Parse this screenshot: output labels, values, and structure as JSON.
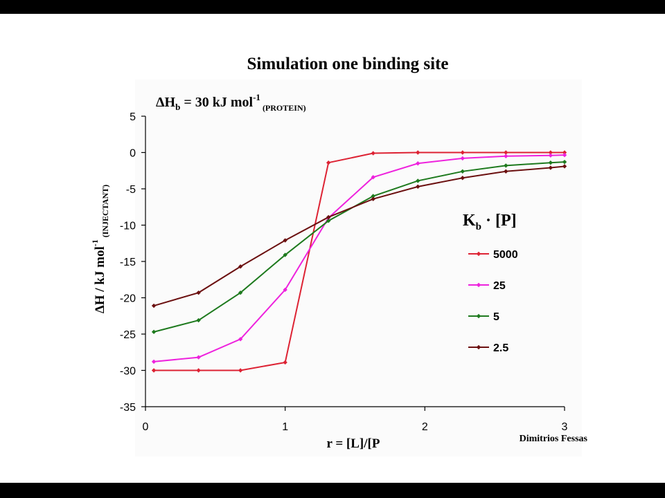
{
  "slide": {
    "title": "Simulation one binding site",
    "credit": "Dimitrios Fessas"
  },
  "chart_data": {
    "type": "line",
    "annotation": {
      "main": "ΔH",
      "sub": "b",
      "rest": " = 30 kJ mol",
      "sup": "-1",
      "tail": " (PROTEIN)"
    },
    "xlabel": "r = [L]/[P",
    "ylabel": {
      "main": "ΔH / kJ mol",
      "sup": "-1",
      "sub": " (INJECTANT)"
    },
    "legend": {
      "title_main": "K",
      "title_sub": "b",
      "title_rest": " · [P]",
      "placement": "right"
    },
    "xlim": [
      0,
      3
    ],
    "ylim": [
      -35,
      5
    ],
    "x_ticks": [
      0,
      1,
      2,
      3
    ],
    "y_ticks": [
      5,
      0,
      -5,
      -10,
      -15,
      -20,
      -25,
      -30,
      -35
    ],
    "grid": false,
    "series": [
      {
        "name": "5000",
        "color": "#dd2233",
        "x": [
          0.06,
          0.38,
          0.68,
          1.0,
          1.31,
          1.63,
          1.95,
          2.27,
          2.58,
          2.9,
          3.0
        ],
        "y": [
          -30,
          -30,
          -30,
          -28.9,
          -1.4,
          -0.1,
          0,
          0,
          0,
          0,
          0
        ]
      },
      {
        "name": "25",
        "color": "#ee22dd",
        "x": [
          0.06,
          0.38,
          0.68,
          1.0,
          1.31,
          1.63,
          1.95,
          2.27,
          2.58,
          2.9,
          3.0
        ],
        "y": [
          -28.8,
          -28.2,
          -25.7,
          -18.9,
          -9.0,
          -3.4,
          -1.5,
          -0.8,
          -0.5,
          -0.4,
          -0.35
        ]
      },
      {
        "name": "5",
        "color": "#1e7a1e",
        "x": [
          0.06,
          0.38,
          0.68,
          1.0,
          1.31,
          1.63,
          1.95,
          2.27,
          2.58,
          2.9,
          3.0
        ],
        "y": [
          -24.7,
          -23.1,
          -19.3,
          -14.1,
          -9.4,
          -6.0,
          -3.9,
          -2.6,
          -1.8,
          -1.4,
          -1.3
        ]
      },
      {
        "name": "2.5",
        "color": "#6b1010",
        "x": [
          0.06,
          0.38,
          0.68,
          1.0,
          1.31,
          1.63,
          1.95,
          2.27,
          2.58,
          2.9,
          3.0
        ],
        "y": [
          -21.1,
          -19.3,
          -15.7,
          -12.1,
          -8.9,
          -6.4,
          -4.7,
          -3.5,
          -2.6,
          -2.1,
          -1.9
        ]
      }
    ]
  }
}
